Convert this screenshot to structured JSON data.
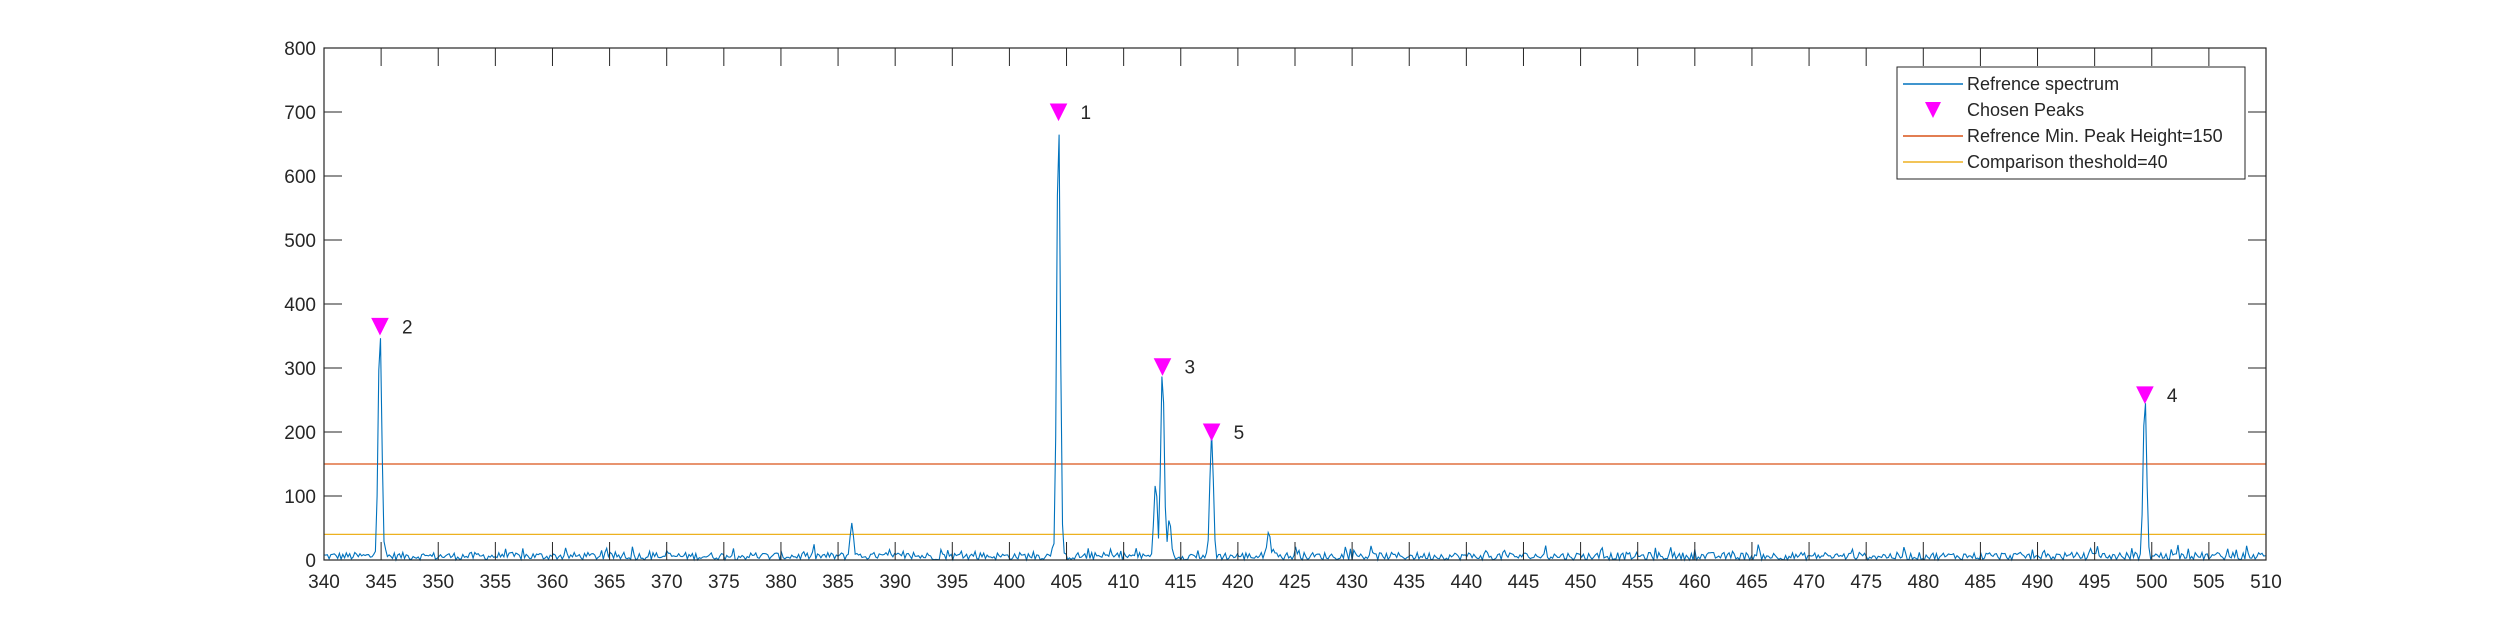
{
  "chart_data": {
    "type": "line",
    "title": "",
    "xlabel": "",
    "ylabel": "",
    "xlim": [
      340,
      510
    ],
    "ylim": [
      0,
      800
    ],
    "x_ticks": [
      340,
      345,
      350,
      355,
      360,
      365,
      370,
      375,
      380,
      385,
      390,
      395,
      400,
      405,
      410,
      415,
      420,
      425,
      430,
      435,
      440,
      445,
      450,
      455,
      460,
      465,
      470,
      475,
      480,
      485,
      490,
      495,
      500,
      505,
      510
    ],
    "y_ticks": [
      0,
      100,
      200,
      300,
      400,
      500,
      600,
      700,
      800
    ],
    "grid": false,
    "legend_position": "top-right",
    "series": [
      {
        "name": "Refrence spectrum",
        "color": "#0072BD",
        "noise_level": 12,
        "peaks": [
          {
            "x": 344.9,
            "y": 365
          },
          {
            "x": 386.2,
            "y": 58
          },
          {
            "x": 404.3,
            "y": 700
          },
          {
            "x": 412.8,
            "y": 122
          },
          {
            "x": 413.4,
            "y": 302
          },
          {
            "x": 414.0,
            "y": 65
          },
          {
            "x": 417.7,
            "y": 200
          },
          {
            "x": 422.7,
            "y": 45
          },
          {
            "x": 499.4,
            "y": 258
          }
        ]
      }
    ],
    "chosen_peaks": {
      "name": "Chosen Peaks",
      "color": "#FF00FF",
      "points": [
        {
          "label": "1",
          "x": 404.3,
          "y": 700
        },
        {
          "label": "2",
          "x": 344.9,
          "y": 365
        },
        {
          "label": "3",
          "x": 413.4,
          "y": 302
        },
        {
          "label": "4",
          "x": 499.4,
          "y": 258
        },
        {
          "label": "5",
          "x": 417.7,
          "y": 200
        }
      ]
    },
    "reference_lines": [
      {
        "name": "Refrence Min. Peak Height=150",
        "y": 150,
        "color": "#D95319"
      },
      {
        "name": "Comparison theshold=40",
        "y": 40,
        "color": "#EDB120"
      }
    ],
    "legend": [
      {
        "label": "Refrence spectrum",
        "marker": "line",
        "color": "#0072BD"
      },
      {
        "label": " Chosen Peaks",
        "marker": "triangle-down",
        "color": "#FF00FF"
      },
      {
        "label": "Refrence Min. Peak Height=150",
        "marker": "line",
        "color": "#D95319"
      },
      {
        "label": "Comparison theshold=40",
        "marker": "line",
        "color": "#EDB120"
      }
    ]
  }
}
